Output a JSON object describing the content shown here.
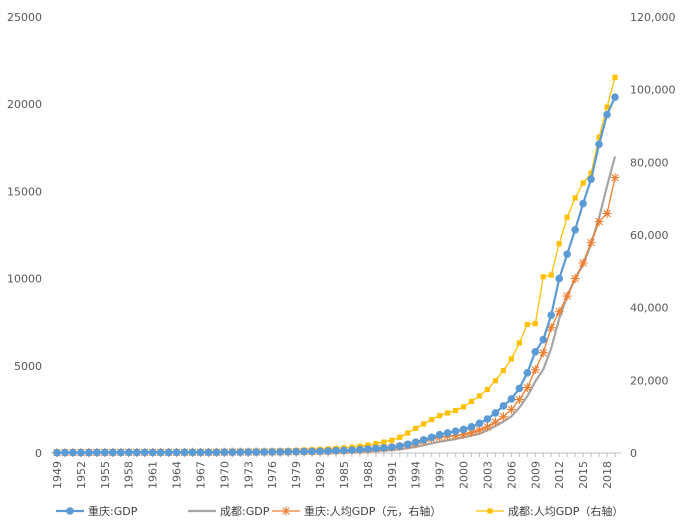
{
  "chart_data": {
    "type": "line",
    "title": "",
    "x": [
      1949,
      1950,
      1951,
      1952,
      1953,
      1954,
      1955,
      1956,
      1957,
      1958,
      1959,
      1960,
      1961,
      1962,
      1963,
      1964,
      1965,
      1966,
      1967,
      1968,
      1969,
      1970,
      1971,
      1972,
      1973,
      1974,
      1975,
      1976,
      1977,
      1978,
      1979,
      1980,
      1981,
      1982,
      1983,
      1984,
      1985,
      1986,
      1987,
      1988,
      1989,
      1990,
      1991,
      1992,
      1993,
      1994,
      1995,
      1996,
      1997,
      1998,
      1999,
      2000,
      2001,
      2002,
      2003,
      2004,
      2005,
      2006,
      2007,
      2008,
      2009,
      2010,
      2011,
      2012,
      2013,
      2014,
      2015,
      2016,
      2017,
      2018,
      2019
    ],
    "x_tick_labels": [
      "1949",
      "1952",
      "1955",
      "1958",
      "1961",
      "1964",
      "1967",
      "1970",
      "1973",
      "1976",
      "1979",
      "1982",
      "1985",
      "1988",
      "1991",
      "1994",
      "1997",
      "2000",
      "2003",
      "2006",
      "2009",
      "2012",
      "2015",
      "2018"
    ],
    "y_left": {
      "min": 0,
      "max": 25000,
      "step": 5000,
      "tick_labels": [
        "0",
        "5000",
        "10000",
        "15000",
        "20000",
        "25000"
      ]
    },
    "y_right": {
      "min": 0,
      "max": 120000,
      "step": 20000,
      "tick_labels": [
        "0",
        "20,000",
        "40,000",
        "60,000",
        "80,000",
        "100,000",
        "120,000"
      ]
    },
    "grid": false,
    "legend_position": "bottom",
    "series": [
      {
        "name": "重庆:GDP",
        "axis": "left",
        "color": "#5B9BD5",
        "marker": "circle",
        "values": [
          20,
          22,
          24,
          26,
          28,
          30,
          31,
          32,
          33,
          34,
          35,
          36,
          34,
          34,
          35,
          36,
          38,
          40,
          38,
          37,
          40,
          45,
          48,
          50,
          52,
          54,
          58,
          60,
          64,
          67,
          75,
          82,
          90,
          100,
          110,
          130,
          150,
          170,
          200,
          230,
          260,
          290,
          330,
          400,
          500,
          620,
          750,
          900,
          1050,
          1150,
          1250,
          1350,
          1500,
          1700,
          1950,
          2300,
          2700,
          3100,
          3700,
          4600,
          5800,
          6500,
          7900,
          10000,
          11400,
          12800,
          14300,
          15700,
          17700,
          19400,
          20400
        ]
      },
      {
        "name": "成都:GDP",
        "axis": "left",
        "color": "#A5A5A5",
        "marker": "none",
        "values": [
          10,
          11,
          12,
          13,
          14,
          15,
          16,
          17,
          18,
          19,
          20,
          21,
          21,
          21,
          22,
          22,
          23,
          24,
          24,
          24,
          25,
          27,
          28,
          29,
          30,
          31,
          32,
          34,
          36,
          38,
          40,
          44,
          50,
          55,
          60,
          70,
          80,
          90,
          100,
          120,
          140,
          160,
          180,
          220,
          280,
          350,
          450,
          550,
          650,
          720,
          800,
          900,
          1000,
          1100,
          1300,
          1550,
          1800,
          2100,
          2600,
          3250,
          4100,
          4800,
          6000,
          7700,
          9000,
          10000,
          10800,
          12000,
          13500,
          15300,
          17000
        ]
      },
      {
        "name": "重庆:人均GDP（元，右轴）",
        "axis": "right",
        "color": "#ED7D31",
        "marker": "star",
        "values": [
          80,
          90,
          100,
          110,
          120,
          130,
          140,
          150,
          160,
          170,
          175,
          180,
          170,
          170,
          175,
          180,
          185,
          190,
          185,
          180,
          190,
          210,
          230,
          240,
          250,
          260,
          270,
          280,
          300,
          320,
          350,
          380,
          420,
          460,
          500,
          580,
          660,
          750,
          860,
          1000,
          1150,
          1300,
          1500,
          1800,
          2200,
          2700,
          3300,
          3900,
          4300,
          4600,
          4800,
          5100,
          5600,
          6300,
          7200,
          8500,
          10000,
          12000,
          14700,
          18000,
          22900,
          27600,
          34500,
          38900,
          43200,
          48000,
          52300,
          57900,
          63700,
          65900,
          75800
        ]
      },
      {
        "name": "成都:人均GDP（右轴）",
        "axis": "right",
        "color": "#FFC000",
        "marker": "square",
        "values": [
          250,
          260,
          270,
          280,
          290,
          300,
          310,
          320,
          330,
          340,
          350,
          360,
          360,
          360,
          370,
          380,
          390,
          400,
          400,
          400,
          420,
          450,
          480,
          500,
          520,
          540,
          560,
          580,
          600,
          650,
          700,
          800,
          900,
          1000,
          1100,
          1250,
          1400,
          1600,
          1850,
          2200,
          2600,
          3000,
          3500,
          4300,
          5500,
          6800,
          8000,
          9200,
          10300,
          11000,
          11700,
          12700,
          14200,
          15700,
          17500,
          19900,
          22700,
          25900,
          30300,
          35400,
          35600,
          48500,
          49000,
          57600,
          64900,
          70200,
          74300,
          77000,
          86900,
          95200,
          103400
        ]
      }
    ]
  }
}
